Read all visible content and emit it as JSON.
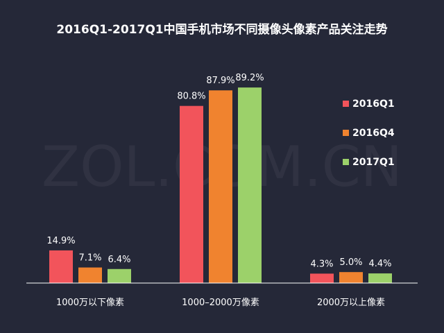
{
  "chart_data": {
    "type": "bar",
    "title": "2016Q1-2017Q1中国手机市场不同摄像头像素产品关注走势",
    "watermark": "ZOL.COM.CN",
    "categories": [
      "1000万以下像素",
      "1000–2000万像素",
      "2000万以上像素"
    ],
    "series": [
      {
        "name": "2016Q1",
        "color": "#f2545b",
        "values": [
          14.9,
          80.8,
          4.3
        ],
        "labels": [
          "14.9%",
          "80.8%",
          "4.3%"
        ]
      },
      {
        "name": "2016Q4",
        "color": "#f0832f",
        "values": [
          7.1,
          87.9,
          5.0
        ],
        "labels": [
          "7.1%",
          "87.9%",
          "5.0%"
        ]
      },
      {
        "name": "2017Q1",
        "color": "#9cd16a",
        "values": [
          6.4,
          89.2,
          4.4
        ],
        "labels": [
          "6.4%",
          "89.2%",
          "4.4%"
        ]
      }
    ],
    "ylim": [
      0,
      100
    ],
    "legend_position": "right",
    "grid": false,
    "colors": {
      "background": "#252838",
      "text": "#ffffff",
      "axis": "#ffffff"
    }
  }
}
